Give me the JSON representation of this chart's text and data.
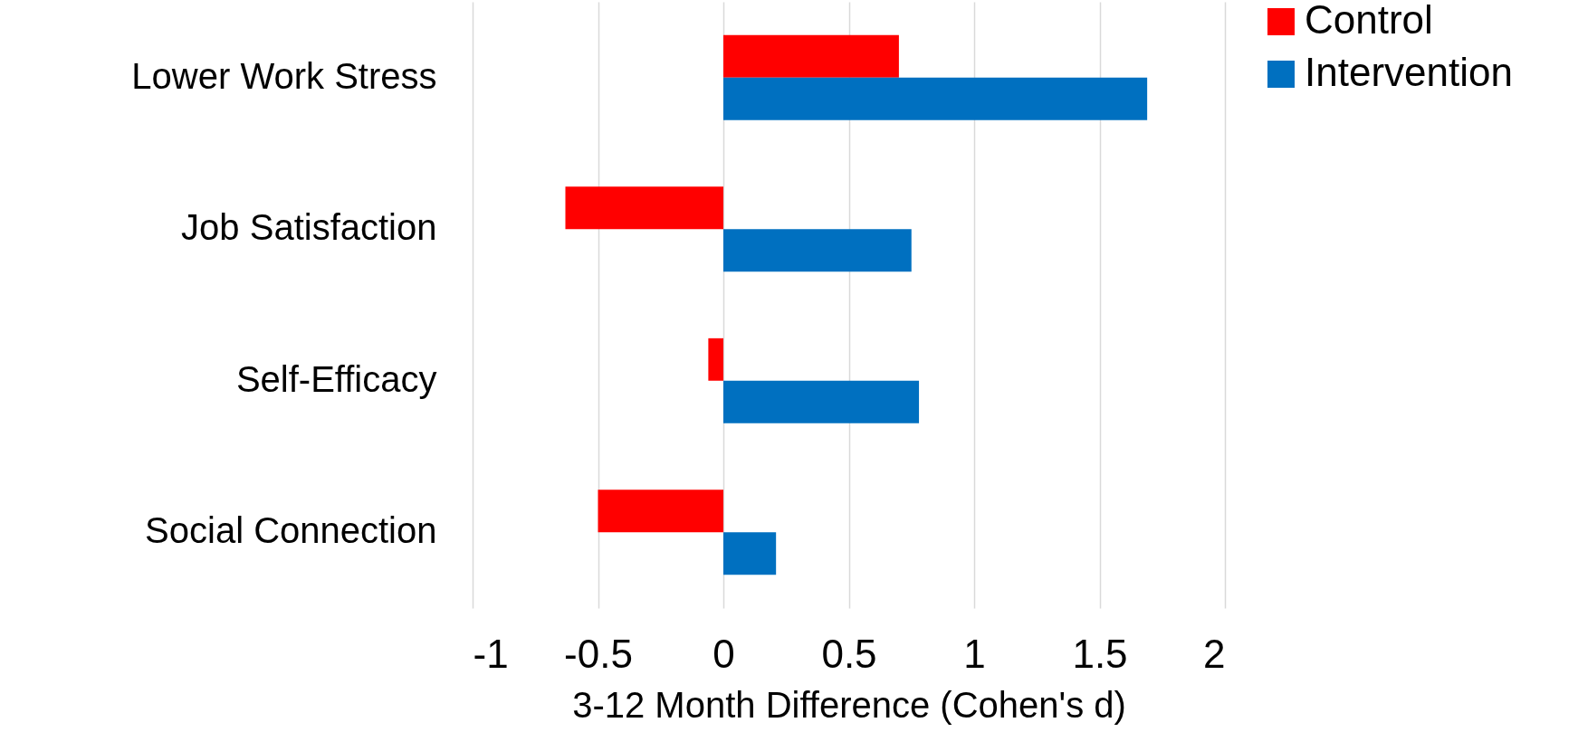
{
  "chart_data": {
    "type": "bar",
    "orientation": "horizontal",
    "xlabel": "3-12 Month Difference (Cohen's d)",
    "categories": [
      "Lower Work Stress",
      "Job Satisfaction",
      "Self-Efficacy",
      "Social Connection"
    ],
    "series": [
      {
        "name": "Control",
        "color": "#ff0000",
        "values": [
          0.7,
          -0.63,
          -0.06,
          -0.5
        ]
      },
      {
        "name": "Intervention",
        "color": "#0070c0",
        "values": [
          1.69,
          0.75,
          0.78,
          0.21
        ]
      }
    ],
    "xlim": [
      -1,
      2
    ],
    "xticks": [
      -1,
      -0.5,
      0,
      0.5,
      1,
      1.5,
      2
    ],
    "grid": "x",
    "legend": "right"
  }
}
